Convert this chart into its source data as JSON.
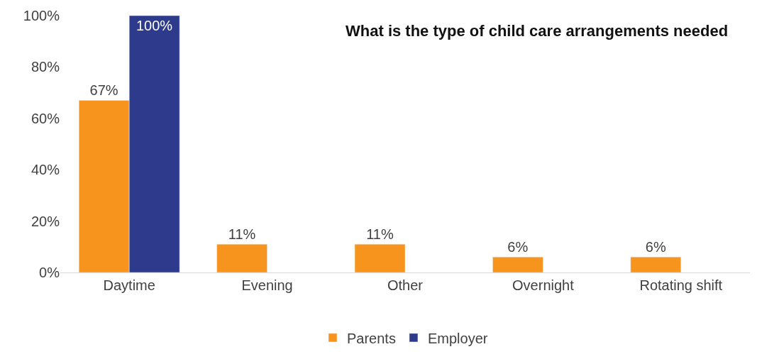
{
  "chart_data": {
    "type": "bar",
    "title": "What is the type of child care arrangements needed",
    "categories": [
      "Daytime",
      "Evening",
      "Other",
      "Overnight",
      "Rotating shift"
    ],
    "series": [
      {
        "name": "Parents",
        "color": "#f7941d",
        "values": [
          67,
          11,
          11,
          6,
          6
        ],
        "value_labels": [
          "67%",
          "11%",
          "11%",
          "6%",
          "6%"
        ]
      },
      {
        "name": "Employer",
        "color": "#2e3a8c",
        "values": [
          100,
          null,
          null,
          null,
          null
        ],
        "value_labels": [
          "100%",
          null,
          null,
          null,
          null
        ]
      }
    ],
    "ylim": [
      0,
      100
    ],
    "yticks": [
      {
        "value": 0,
        "label": "0%"
      },
      {
        "value": 20,
        "label": "20%"
      },
      {
        "value": 40,
        "label": "40%"
      },
      {
        "value": 60,
        "label": "60%"
      },
      {
        "value": 80,
        "label": "80%"
      },
      {
        "value": 100,
        "label": "100%"
      }
    ],
    "legend": "bottom"
  }
}
